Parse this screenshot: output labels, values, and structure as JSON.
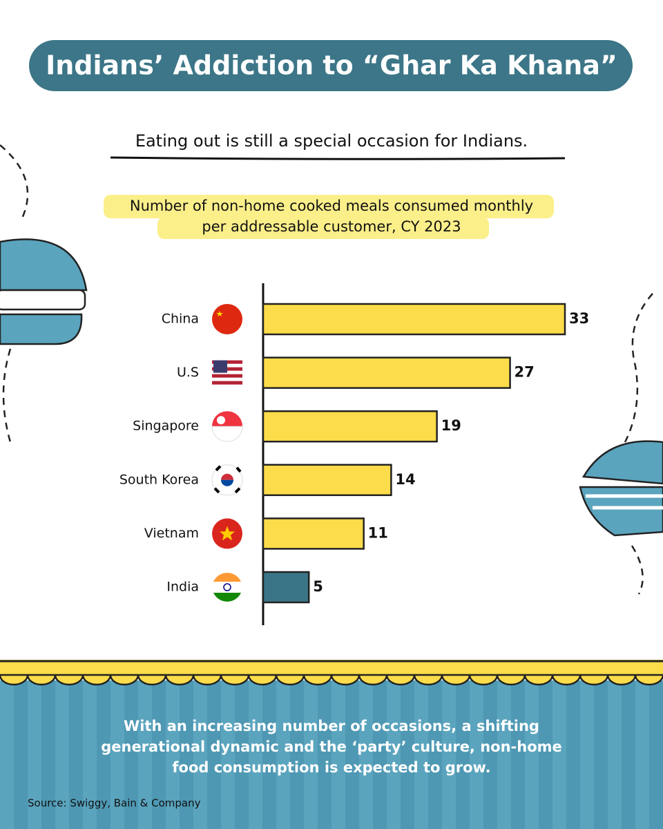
{
  "chart_data": {
    "type": "bar",
    "orientation": "horizontal",
    "title": "Indians’ Addiction to “Ghar Ka Khana”",
    "subtitle": "Eating out is still a special occasion for Indians.",
    "chart_title_lines": [
      "Number of non-home cooked meals consumed monthly",
      "per addressable customer, CY 2023"
    ],
    "categories": [
      "China",
      "U.S",
      "Singapore",
      "South Korea",
      "Vietnam",
      "India"
    ],
    "values": [
      33,
      27,
      19,
      14,
      11,
      5
    ],
    "colors": [
      "#fcdc4a",
      "#fcdc4a",
      "#fcdc4a",
      "#fcdc4a",
      "#fcdc4a",
      "#3a7587"
    ],
    "xlim": [
      0,
      33
    ],
    "footer_note": [
      "With an increasing number of occasions, a shifting",
      "generational dynamic and the ‘party’ culture, non-home",
      "food consumption is expected to grow."
    ],
    "source": "Source: Swiggy, Bain & Company"
  }
}
